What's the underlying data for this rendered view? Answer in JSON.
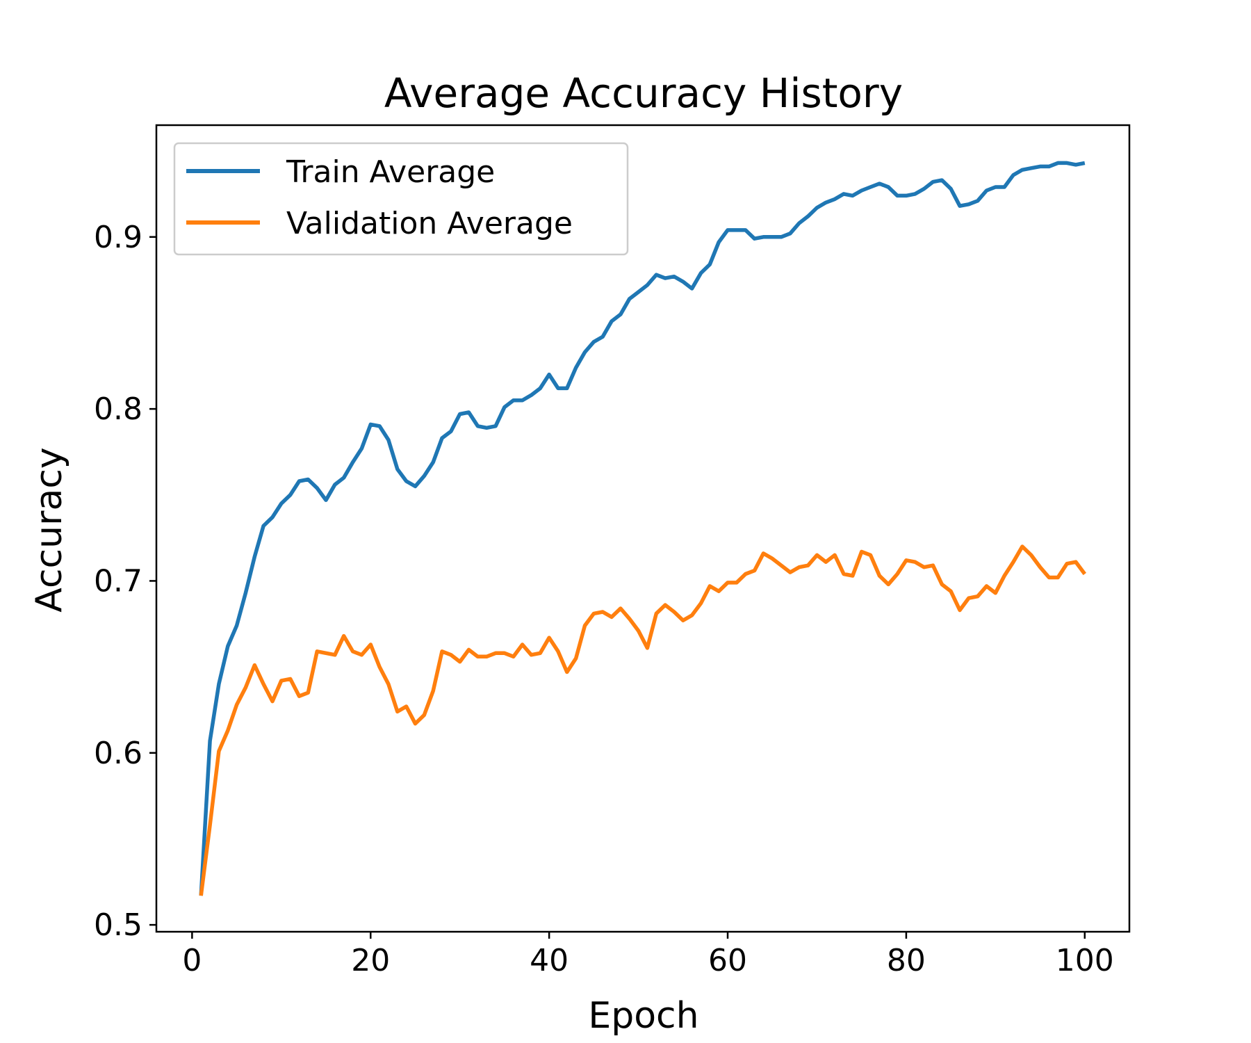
{
  "chart_data": {
    "type": "line",
    "title": "Average Accuracy History",
    "xlabel": "Epoch",
    "ylabel": "Accuracy",
    "xlim": [
      -4,
      105
    ],
    "ylim": [
      0.496,
      0.965
    ],
    "xticks": [
      0,
      20,
      40,
      60,
      80,
      100
    ],
    "yticks": [
      0.5,
      0.6,
      0.7,
      0.8,
      0.9
    ],
    "xtick_labels": [
      "0",
      "20",
      "40",
      "60",
      "80",
      "100"
    ],
    "ytick_labels": [
      "0.5",
      "0.6",
      "0.7",
      "0.8",
      "0.9"
    ],
    "grid": false,
    "legend": "upper-left",
    "x": [
      1,
      2,
      3,
      4,
      5,
      6,
      7,
      8,
      9,
      10,
      11,
      12,
      13,
      14,
      15,
      16,
      17,
      18,
      19,
      20,
      21,
      22,
      23,
      24,
      25,
      26,
      27,
      28,
      29,
      30,
      31,
      32,
      33,
      34,
      35,
      36,
      37,
      38,
      39,
      40,
      41,
      42,
      43,
      44,
      45,
      46,
      47,
      48,
      49,
      50,
      51,
      52,
      53,
      54,
      55,
      56,
      57,
      58,
      59,
      60,
      61,
      62,
      63,
      64,
      65,
      66,
      67,
      68,
      69,
      70,
      71,
      72,
      73,
      74,
      75,
      76,
      77,
      78,
      79,
      80,
      81,
      82,
      83,
      84,
      85,
      86,
      87,
      88,
      89,
      90,
      91,
      92,
      93,
      94,
      95,
      96,
      97,
      98,
      99,
      100
    ],
    "series": [
      {
        "name": "Train Average",
        "color": "#1f77b4",
        "values": [
          0.517,
          0.607,
          0.64,
          0.662,
          0.674,
          0.693,
          0.714,
          0.732,
          0.737,
          0.745,
          0.75,
          0.758,
          0.759,
          0.754,
          0.747,
          0.756,
          0.76,
          0.769,
          0.777,
          0.791,
          0.79,
          0.782,
          0.765,
          0.758,
          0.755,
          0.761,
          0.769,
          0.783,
          0.787,
          0.797,
          0.798,
          0.79,
          0.789,
          0.79,
          0.801,
          0.805,
          0.805,
          0.808,
          0.812,
          0.82,
          0.812,
          0.812,
          0.824,
          0.833,
          0.839,
          0.842,
          0.851,
          0.855,
          0.864,
          0.868,
          0.872,
          0.878,
          0.876,
          0.877,
          0.874,
          0.87,
          0.879,
          0.884,
          0.897,
          0.904,
          0.904,
          0.904,
          0.899,
          0.9,
          0.9,
          0.9,
          0.902,
          0.908,
          0.912,
          0.917,
          0.92,
          0.922,
          0.925,
          0.924,
          0.927,
          0.929,
          0.931,
          0.929,
          0.924,
          0.924,
          0.925,
          0.928,
          0.932,
          0.933,
          0.928,
          0.918,
          0.919,
          0.921,
          0.927,
          0.929,
          0.929,
          0.936,
          0.939,
          0.94,
          0.941,
          0.941,
          0.943,
          0.943,
          0.942,
          0.943
        ]
      },
      {
        "name": "Validation Average",
        "color": "#ff7f0e",
        "values": [
          0.517,
          0.558,
          0.601,
          0.613,
          0.628,
          0.638,
          0.651,
          0.64,
          0.63,
          0.642,
          0.643,
          0.633,
          0.635,
          0.659,
          0.658,
          0.657,
          0.668,
          0.659,
          0.657,
          0.663,
          0.65,
          0.64,
          0.624,
          0.627,
          0.617,
          0.622,
          0.636,
          0.659,
          0.657,
          0.653,
          0.66,
          0.656,
          0.656,
          0.658,
          0.658,
          0.656,
          0.663,
          0.657,
          0.658,
          0.667,
          0.659,
          0.647,
          0.655,
          0.674,
          0.681,
          0.682,
          0.679,
          0.684,
          0.678,
          0.671,
          0.661,
          0.681,
          0.686,
          0.682,
          0.677,
          0.68,
          0.687,
          0.697,
          0.694,
          0.699,
          0.699,
          0.704,
          0.706,
          0.716,
          0.713,
          0.709,
          0.705,
          0.708,
          0.709,
          0.715,
          0.711,
          0.715,
          0.704,
          0.703,
          0.717,
          0.715,
          0.703,
          0.698,
          0.704,
          0.712,
          0.711,
          0.708,
          0.709,
          0.698,
          0.694,
          0.683,
          0.69,
          0.691,
          0.697,
          0.693,
          0.703,
          0.711,
          0.72,
          0.715,
          0.708,
          0.702,
          0.702,
          0.71,
          0.711,
          0.704
        ]
      }
    ]
  }
}
